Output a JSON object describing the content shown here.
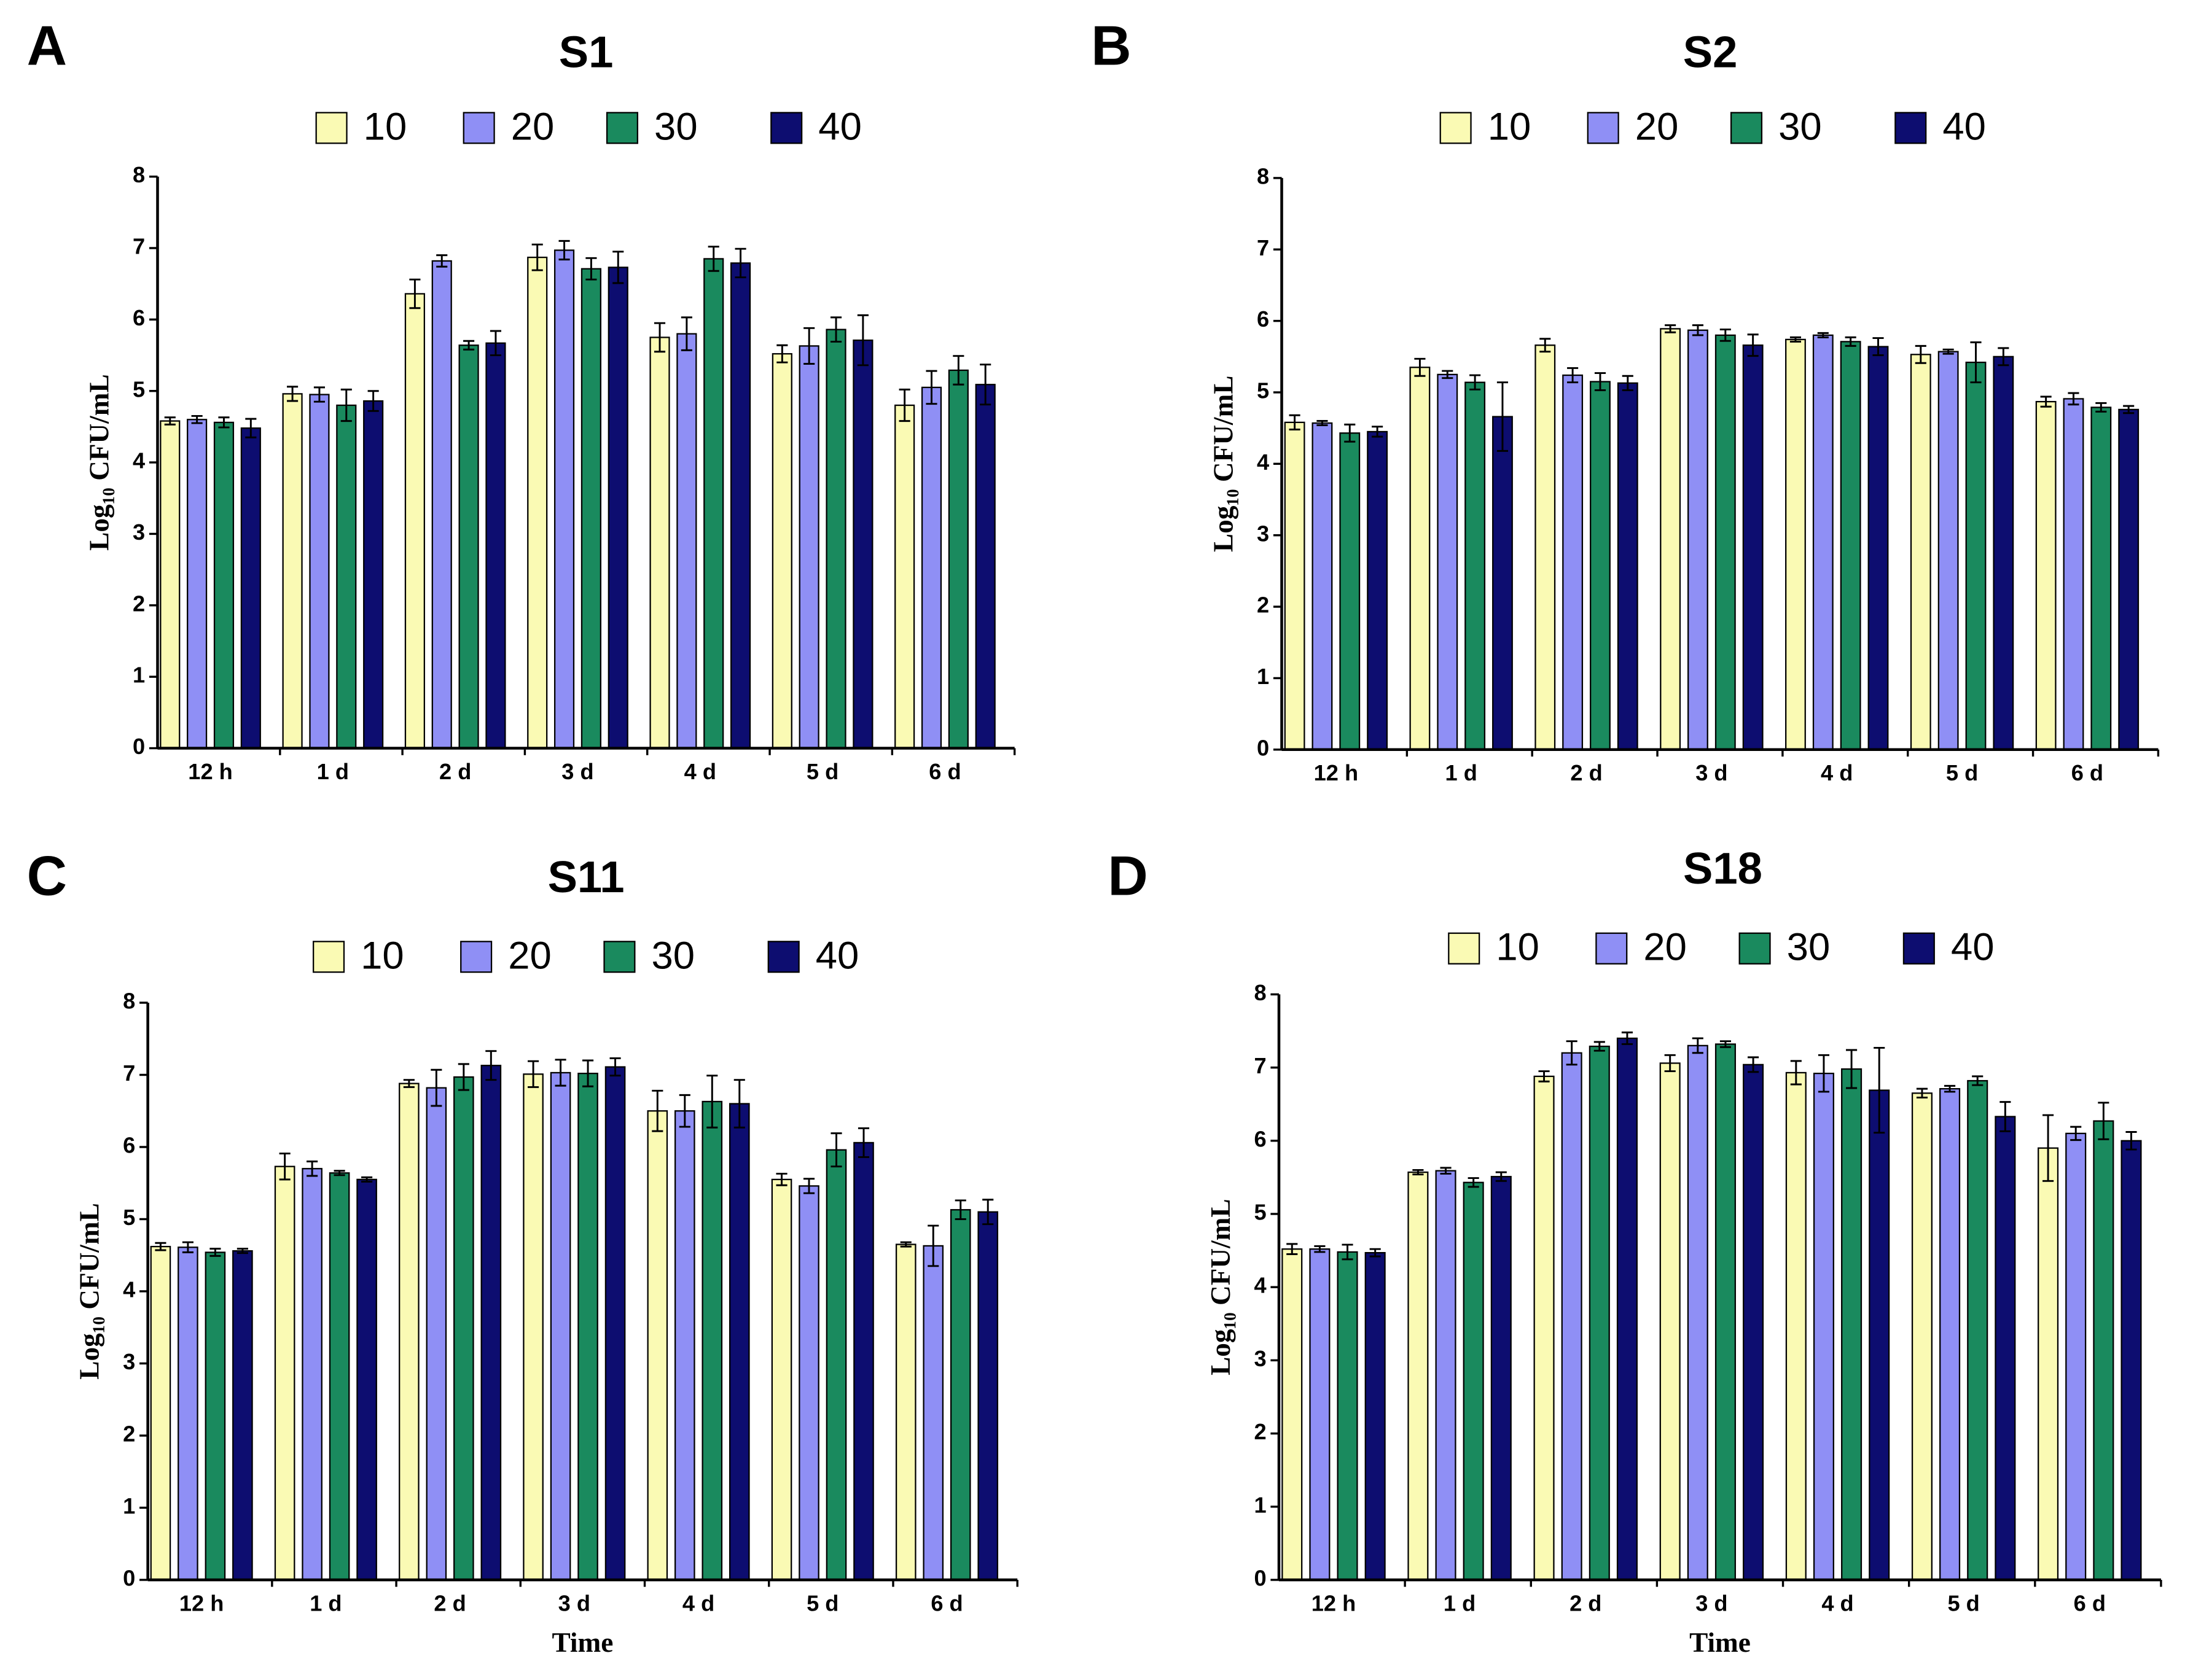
{
  "chart_data": [
    {
      "type": "bar",
      "panel": "A",
      "title": "S1",
      "ylabel": "Log₁₀ CFU/mL",
      "categories": [
        "12 h",
        "1 d",
        "2 d",
        "3 d",
        "4 d",
        "5 d",
        "6 d"
      ],
      "ylim": [
        0,
        8
      ],
      "yticks": [
        0,
        1,
        2,
        3,
        4,
        5,
        6,
        7,
        8
      ],
      "series": [
        {
          "name": "10",
          "color": "#fafab4",
          "values": [
            4.58,
            4.96,
            6.36,
            6.87,
            5.75,
            5.52,
            4.8
          ],
          "errors": [
            0.05,
            0.1,
            0.2,
            0.18,
            0.2,
            0.12,
            0.22
          ]
        },
        {
          "name": "20",
          "color": "#8f8ff5",
          "values": [
            4.6,
            4.95,
            6.82,
            6.97,
            5.8,
            5.63,
            5.05
          ],
          "errors": [
            0.05,
            0.1,
            0.08,
            0.13,
            0.23,
            0.25,
            0.23
          ]
        },
        {
          "name": "30",
          "color": "#1a8a5e",
          "values": [
            4.56,
            4.8,
            5.64,
            6.71,
            6.85,
            5.86,
            5.29
          ],
          "errors": [
            0.07,
            0.22,
            0.06,
            0.15,
            0.17,
            0.17,
            0.2
          ]
        },
        {
          "name": "40",
          "color": "#0d0d70",
          "values": [
            4.48,
            4.86,
            5.67,
            6.73,
            6.79,
            5.71,
            5.09
          ],
          "errors": [
            0.13,
            0.14,
            0.17,
            0.22,
            0.2,
            0.35,
            0.28
          ]
        }
      ]
    },
    {
      "type": "bar",
      "panel": "B",
      "title": "S2",
      "ylabel": "Log₁₀ CFU/mL",
      "categories": [
        "12 h",
        "1 d",
        "2 d",
        "3 d",
        "4 d",
        "5 d",
        "6 d"
      ],
      "ylim": [
        0,
        8
      ],
      "yticks": [
        0,
        1,
        2,
        3,
        4,
        5,
        6,
        7,
        8
      ],
      "series": [
        {
          "name": "10",
          "color": "#fafab4",
          "values": [
            4.58,
            5.35,
            5.66,
            5.89,
            5.74,
            5.53,
            4.87
          ],
          "errors": [
            0.1,
            0.12,
            0.09,
            0.05,
            0.03,
            0.12,
            0.07
          ]
        },
        {
          "name": "20",
          "color": "#8f8ff5",
          "values": [
            4.57,
            5.25,
            5.24,
            5.87,
            5.8,
            5.57,
            4.91
          ],
          "errors": [
            0.03,
            0.05,
            0.1,
            0.07,
            0.03,
            0.03,
            0.08
          ]
        },
        {
          "name": "30",
          "color": "#1a8a5e",
          "values": [
            4.43,
            5.14,
            5.15,
            5.8,
            5.71,
            5.42,
            4.79
          ],
          "errors": [
            0.12,
            0.1,
            0.12,
            0.08,
            0.06,
            0.28,
            0.06
          ]
        },
        {
          "name": "40",
          "color": "#0d0d70",
          "values": [
            4.45,
            4.66,
            5.13,
            5.66,
            5.64,
            5.5,
            4.76
          ],
          "errors": [
            0.07,
            0.48,
            0.1,
            0.15,
            0.12,
            0.12,
            0.05
          ]
        }
      ]
    },
    {
      "type": "bar",
      "panel": "C",
      "title": "S11",
      "ylabel": "Log₁₀ CFU/mL",
      "xlabel": "Time",
      "categories": [
        "12 h",
        "1 d",
        "2 d",
        "3 d",
        "4 d",
        "5 d",
        "6 d"
      ],
      "ylim": [
        0,
        8
      ],
      "yticks": [
        0,
        1,
        2,
        3,
        4,
        5,
        6,
        7,
        8
      ],
      "series": [
        {
          "name": "10",
          "color": "#fafab4",
          "values": [
            4.62,
            5.73,
            6.88,
            7.01,
            6.5,
            5.55,
            4.65
          ],
          "errors": [
            0.05,
            0.18,
            0.05,
            0.18,
            0.28,
            0.08,
            0.03
          ]
        },
        {
          "name": "20",
          "color": "#8f8ff5",
          "values": [
            4.61,
            5.7,
            6.82,
            7.03,
            6.5,
            5.46,
            4.63
          ],
          "errors": [
            0.07,
            0.1,
            0.25,
            0.18,
            0.22,
            0.1,
            0.28
          ]
        },
        {
          "name": "30",
          "color": "#1a8a5e",
          "values": [
            4.54,
            5.64,
            6.97,
            7.02,
            6.63,
            5.96,
            5.13
          ],
          "errors": [
            0.05,
            0.03,
            0.18,
            0.18,
            0.36,
            0.23,
            0.13
          ]
        },
        {
          "name": "40",
          "color": "#0d0d70",
          "values": [
            4.56,
            5.55,
            7.13,
            7.11,
            6.6,
            6.06,
            5.1
          ],
          "errors": [
            0.03,
            0.03,
            0.2,
            0.12,
            0.33,
            0.2,
            0.17
          ]
        }
      ]
    },
    {
      "type": "bar",
      "panel": "D",
      "title": "S18",
      "ylabel": "Log₁₀ CFU/mL",
      "xlabel": "Time",
      "categories": [
        "12 h",
        "1 d",
        "2 d",
        "3 d",
        "4 d",
        "5 d",
        "6 d"
      ],
      "ylim": [
        0,
        8
      ],
      "yticks": [
        0,
        1,
        2,
        3,
        4,
        5,
        6,
        7,
        8
      ],
      "series": [
        {
          "name": "10",
          "color": "#fafab4",
          "values": [
            4.52,
            5.57,
            6.88,
            7.06,
            6.93,
            6.65,
            5.9
          ],
          "errors": [
            0.07,
            0.03,
            0.07,
            0.11,
            0.16,
            0.06,
            0.45
          ]
        },
        {
          "name": "20",
          "color": "#8f8ff5",
          "values": [
            4.52,
            5.59,
            7.2,
            7.3,
            6.92,
            6.71,
            6.1
          ],
          "errors": [
            0.04,
            0.04,
            0.16,
            0.1,
            0.25,
            0.04,
            0.09
          ]
        },
        {
          "name": "30",
          "color": "#1a8a5e",
          "values": [
            4.48,
            5.43,
            7.29,
            7.32,
            6.98,
            6.82,
            6.27
          ],
          "errors": [
            0.1,
            0.06,
            0.06,
            0.04,
            0.26,
            0.06,
            0.25
          ]
        },
        {
          "name": "40",
          "color": "#0d0d70",
          "values": [
            4.47,
            5.51,
            7.4,
            7.04,
            6.69,
            6.33,
            6.0
          ],
          "errors": [
            0.05,
            0.06,
            0.08,
            0.1,
            0.58,
            0.2,
            0.12
          ]
        }
      ]
    }
  ]
}
